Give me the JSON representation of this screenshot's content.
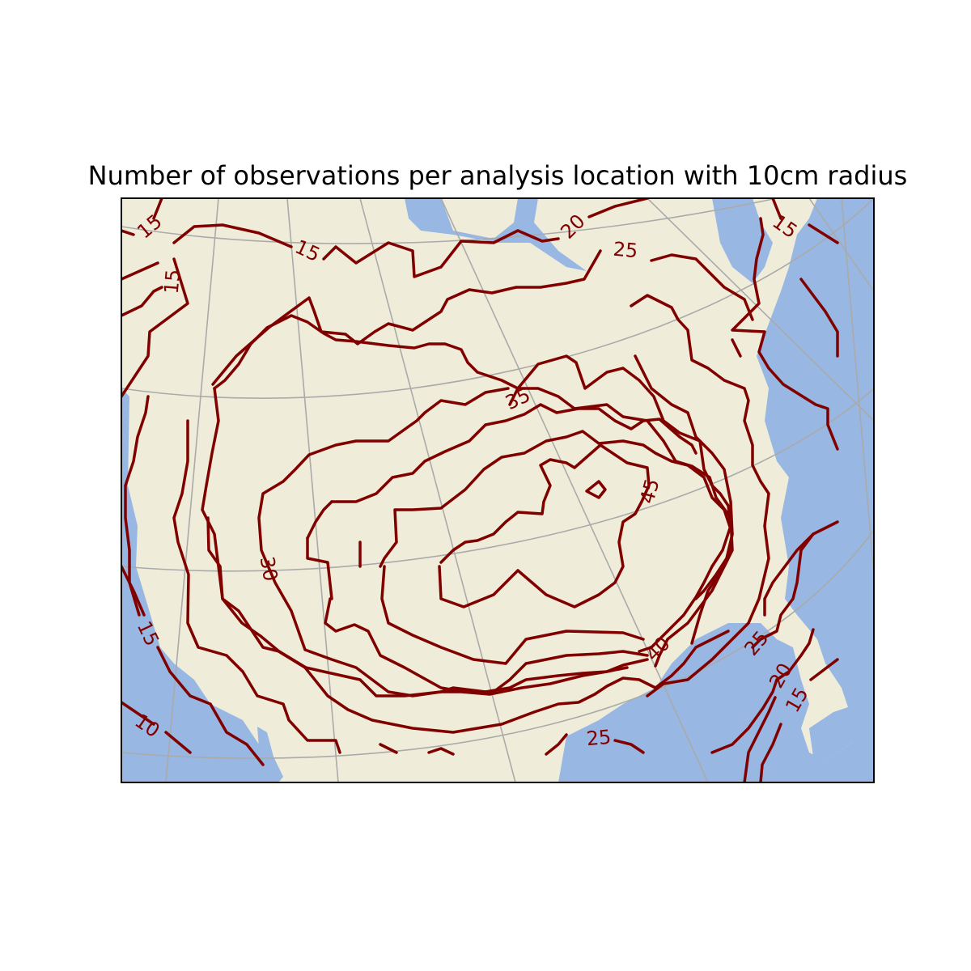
{
  "title": "Number of observations per analysis location with 10cm radius",
  "colors": {
    "land": "#efedda",
    "water": "#98b7e2",
    "contour": "#800000",
    "gridline": "#aaaaaa",
    "frame": "#000000"
  },
  "chart_data": {
    "type": "contour",
    "title": "Number of observations per analysis location with 10cm radius",
    "contour_levels": [
      10,
      15,
      20,
      25,
      30,
      35,
      40,
      45
    ],
    "labels": {
      "l10": "10",
      "l15_nw": "15",
      "l15_nw2": "15",
      "l15_n": "15",
      "l15_ne": "15",
      "l15_w": "15",
      "l15_se": "15",
      "l20_n": "20",
      "l20_se": "20",
      "l25_n": "25",
      "l25_se": "25",
      "l25_s": "25",
      "l30": "30",
      "l35": "35",
      "l40": "40",
      "l45": "45"
    }
  }
}
